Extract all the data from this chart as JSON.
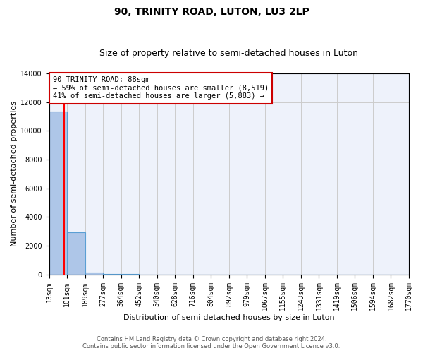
{
  "title": "90, TRINITY ROAD, LUTON, LU3 2LP",
  "subtitle": "Size of property relative to semi-detached houses in Luton",
  "xlabel": "Distribution of semi-detached houses by size in Luton",
  "ylabel": "Number of semi-detached properties",
  "property_size": 88,
  "annotation_text_line1": "90 TRINITY ROAD: 88sqm",
  "annotation_text_line2": "← 59% of semi-detached houses are smaller (8,519)",
  "annotation_text_line3": "41% of semi-detached houses are larger (5,883) →",
  "bar_edges": [
    13,
    101,
    189,
    277,
    364,
    452,
    540,
    628,
    716,
    804,
    892,
    979,
    1067,
    1155,
    1243,
    1331,
    1419,
    1506,
    1594,
    1682,
    1770
  ],
  "bar_heights": [
    11350,
    2950,
    120,
    15,
    5,
    3,
    2,
    2,
    1,
    1,
    1,
    1,
    1,
    1,
    1,
    1,
    1,
    1,
    1,
    1
  ],
  "bar_color": "#aec6e8",
  "bar_edge_color": "#5a9fd4",
  "ylim": [
    0,
    14000
  ],
  "yticks": [
    0,
    2000,
    4000,
    6000,
    8000,
    10000,
    12000,
    14000
  ],
  "tick_labels": [
    "13sqm",
    "101sqm",
    "189sqm",
    "277sqm",
    "364sqm",
    "452sqm",
    "540sqm",
    "628sqm",
    "716sqm",
    "804sqm",
    "892sqm",
    "979sqm",
    "1067sqm",
    "1155sqm",
    "1243sqm",
    "1331sqm",
    "1419sqm",
    "1506sqm",
    "1594sqm",
    "1682sqm",
    "1770sqm"
  ],
  "footer_line1": "Contains HM Land Registry data © Crown copyright and database right 2024.",
  "footer_line2": "Contains public sector information licensed under the Open Government Licence v3.0.",
  "grid_color": "#cccccc",
  "background_color": "#eef2fb",
  "annotation_box_color": "#ffffff",
  "annotation_border_color": "#cc0000",
  "title_fontsize": 10,
  "subtitle_fontsize": 9,
  "axis_label_fontsize": 8,
  "tick_fontsize": 7,
  "annotation_fontsize": 7.5,
  "footer_fontsize": 6
}
